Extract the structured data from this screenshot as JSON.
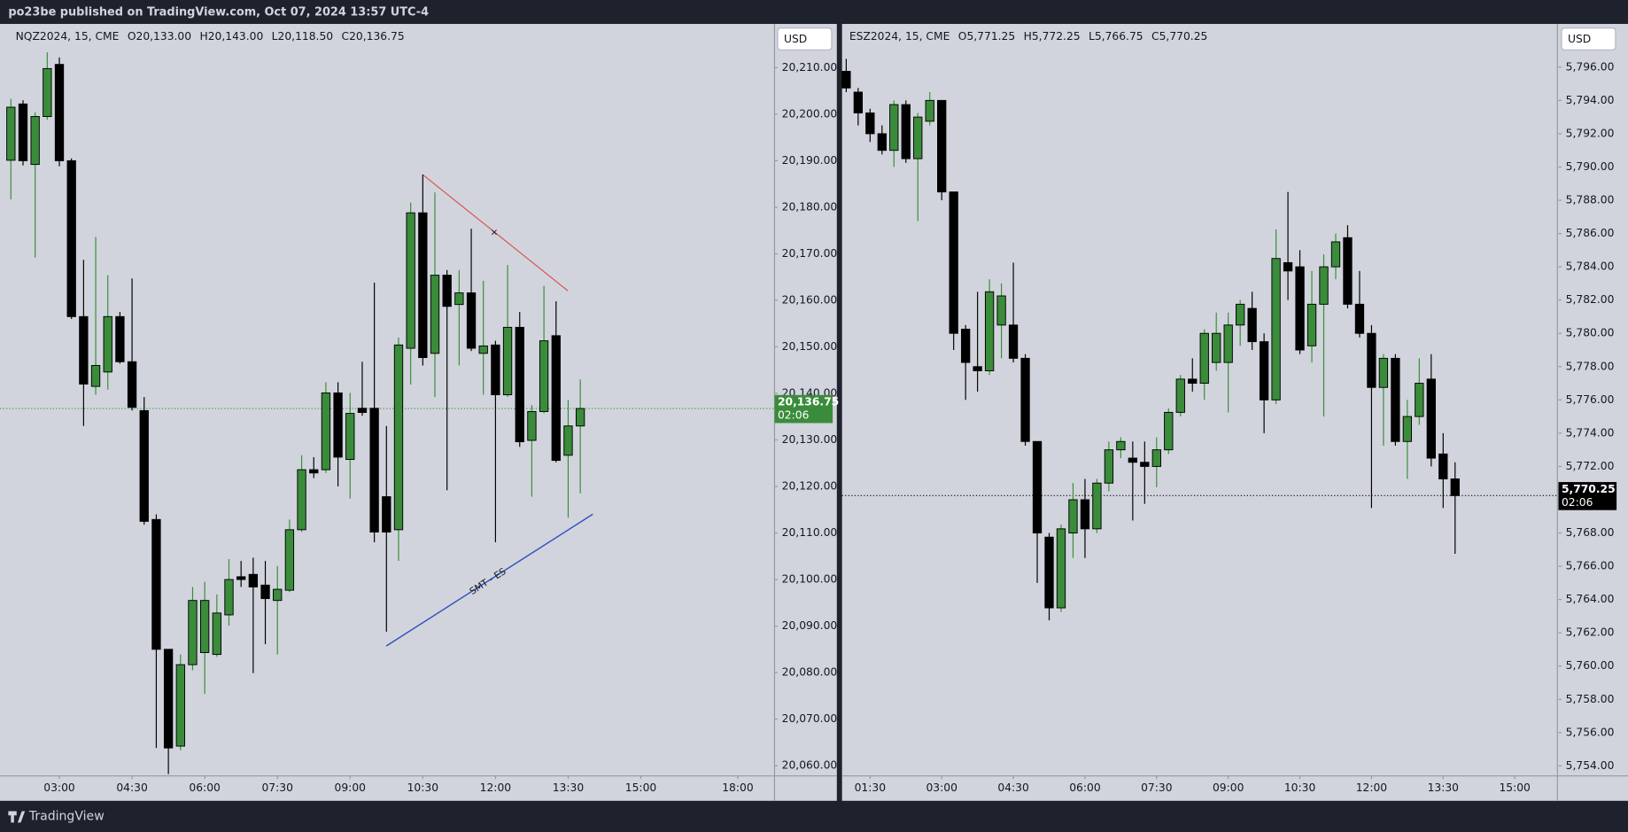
{
  "header": {
    "publisher": "po23be published on TradingView.com, Oct 07, 2024 13:57 UTC-4"
  },
  "footer": {
    "brand": "TradingView"
  },
  "chart_data": [
    {
      "type": "candlestick",
      "symbol": "NQZ2024, 15, CME",
      "ohlc_text": [
        "O20,133.00",
        "H20,143.00",
        "L20,118.50",
        "C20,136.75"
      ],
      "currency": "USD",
      "up_color": "#3a8c3a",
      "down_color": "#000000",
      "open": [
        20190.1,
        20202.2,
        20189.2,
        20199.5,
        20210.7,
        20190,
        20156.5,
        20141.5,
        20144.6,
        20156.5,
        20146.8,
        20136.3,
        20112.9,
        20085,
        20064.2,
        20081.7,
        20084.3,
        20083.9,
        20092.4,
        20100.6,
        20101.1,
        20098.8,
        20095.5,
        20097.7,
        20110.7,
        20123.6,
        20123.6,
        20140.1,
        20125.8,
        20136.8,
        20136.8,
        20117.8,
        20110.7,
        20149.7,
        20178.8,
        20148.6,
        20165.4,
        20159.1,
        20161.6,
        20148.6,
        20150.4,
        20139.7,
        20154.2,
        20129.9,
        20136.1,
        20152.4,
        20126.7,
        20133
      ],
      "high": [
        20203.3,
        20203,
        20200.4,
        20213.3,
        20212.2,
        20190.5,
        20168.7,
        20173.6,
        20165.4,
        20157.5,
        20164.7,
        20139.2,
        20114,
        20085,
        20083.9,
        20098.4,
        20099.5,
        20096.8,
        20104.4,
        20104,
        20104.7,
        20104,
        20102.9,
        20112.9,
        20126.7,
        20126.3,
        20142.4,
        20142.4,
        20140.1,
        20146.8,
        20163.8,
        20133,
        20152,
        20181,
        20187,
        20183.2,
        20166.5,
        20166.5,
        20175.4,
        20164.2,
        20151.3,
        20167.6,
        20157.5,
        20137.5,
        20163.1,
        20159.8,
        20138.6,
        20143
      ],
      "low": [
        20181.7,
        20189,
        20169.2,
        20198.8,
        20188.8,
        20156,
        20133,
        20139.7,
        20140.8,
        20146.4,
        20136.3,
        20111.8,
        20063.8,
        20058.2,
        20063.3,
        20080.5,
        20075.4,
        20083.4,
        20090.1,
        20098.4,
        20079.9,
        20086.1,
        20083.9,
        20097.3,
        20110.2,
        20121.8,
        20122.9,
        20120,
        20117.4,
        20135.2,
        20108,
        20088.8,
        20104,
        20141.9,
        20146,
        20139.2,
        20119.2,
        20146,
        20149.1,
        20139.7,
        20108,
        20139.2,
        20128.5,
        20117.8,
        20135.7,
        20125.2,
        20113.3,
        20118.5
      ],
      "close": [
        20201.5,
        20190,
        20199.5,
        20209.8,
        20190,
        20156.5,
        20142,
        20146,
        20156.5,
        20146.8,
        20137,
        20112.5,
        20085,
        20063.8,
        20081.7,
        20095.5,
        20095.5,
        20092.8,
        20100,
        20100,
        20098.4,
        20095.9,
        20097.9,
        20110.7,
        20123.6,
        20122.9,
        20140.1,
        20126.3,
        20135.7,
        20135.9,
        20110.2,
        20110.2,
        20150.4,
        20178.8,
        20147.7,
        20165.4,
        20158.7,
        20161.6,
        20149.7,
        20150.2,
        20139.7,
        20154.2,
        20129.6,
        20136.1,
        20151.3,
        20125.6,
        20133,
        20136.75
      ],
      "xlim": [
        -0.9,
        62.95
      ],
      "xticks": [
        {
          "value": 4,
          "label": "03:00"
        },
        {
          "value": 10,
          "label": "04:30"
        },
        {
          "value": 16,
          "label": "06:00"
        },
        {
          "value": 22,
          "label": "07:30"
        },
        {
          "value": 28,
          "label": "09:00"
        },
        {
          "value": 34,
          "label": "10:30"
        },
        {
          "value": 40,
          "label": "12:00"
        },
        {
          "value": 46,
          "label": "13:30"
        },
        {
          "value": 52,
          "label": "15:00"
        },
        {
          "value": 60,
          "label": "18:00"
        }
      ],
      "ylim": [
        20057.8,
        20219.4
      ],
      "yticks": [
        {
          "value": 20060,
          "label": "20,060.00"
        },
        {
          "value": 20070,
          "label": "20,070.00"
        },
        {
          "value": 20080,
          "label": "20,080.00"
        },
        {
          "value": 20090,
          "label": "20,090.00"
        },
        {
          "value": 20100,
          "label": "20,100.00"
        },
        {
          "value": 20110,
          "label": "20,110.00"
        },
        {
          "value": 20120,
          "label": "20,120.00"
        },
        {
          "value": 20130,
          "label": "20,130.00"
        },
        {
          "value": 20140,
          "label": "20,140.00"
        },
        {
          "value": 20150,
          "label": "20,150.00"
        },
        {
          "value": 20160,
          "label": "20,160.00"
        },
        {
          "value": 20170,
          "label": "20,170.00"
        },
        {
          "value": 20180,
          "label": "20,180.00"
        },
        {
          "value": 20190,
          "label": "20,190.00"
        },
        {
          "value": 20200,
          "label": "20,200.00"
        },
        {
          "value": 20210,
          "label": "20,210.00"
        }
      ],
      "last_price": {
        "value": 20136.75,
        "label": "20,136.75",
        "countdown": "02:06",
        "color": "#3a8c3a"
      },
      "annotations": [
        "×",
        "SMT - ES"
      ]
    },
    {
      "type": "candlestick",
      "symbol": "ESZ2024, 15, CME",
      "ohlc_text": [
        "O5,771.25",
        "H5,772.25",
        "L5,766.75",
        "C5,770.25"
      ],
      "currency": "USD",
      "up_color": "#3a8c3a",
      "down_color": "#000000",
      "open": [
        5795.75,
        5794.5,
        5793.25,
        5792,
        5791,
        5793.75,
        5790.5,
        5792.75,
        5794,
        5788.5,
        5780.25,
        5778,
        5777.75,
        5780.5,
        5780.5,
        5778.5,
        5773.5,
        5767.75,
        5763.5,
        5768,
        5770,
        5768.25,
        5771,
        5773,
        5772.5,
        5772.25,
        5772,
        5773,
        5775.25,
        5777.25,
        5777,
        5778.25,
        5778.25,
        5780.5,
        5781.5,
        5779.5,
        5776,
        5784.25,
        5784,
        5779.25,
        5781.75,
        5784,
        5785.75,
        5781.75,
        5780,
        5776.75,
        5778.5,
        5773.5,
        5775,
        5777.25,
        5772.75,
        5771.25
      ],
      "high": [
        5796.5,
        5794.75,
        5793.5,
        5792.5,
        5794,
        5794,
        5793.25,
        5794.5,
        5794,
        5788.5,
        5780.5,
        5782.5,
        5783.25,
        5783,
        5784.25,
        5778.75,
        5773.5,
        5768,
        5768.5,
        5771,
        5771.25,
        5771.25,
        5773.5,
        5773.75,
        5773.5,
        5773.5,
        5773.75,
        5775.5,
        5777.5,
        5778.5,
        5780.25,
        5781.25,
        5781.25,
        5782,
        5782.5,
        5780,
        5786.25,
        5788.5,
        5785,
        5783.75,
        5784.75,
        5786,
        5786.5,
        5783.75,
        5780.5,
        5778.75,
        5778.75,
        5776,
        5778.5,
        5778.75,
        5774,
        5772.25
      ],
      "low": [
        5794.5,
        5792.5,
        5791.5,
        5790.75,
        5790,
        5790.25,
        5786.75,
        5792.5,
        5788,
        5779,
        5776,
        5776.5,
        5777.5,
        5778.5,
        5778.25,
        5773.25,
        5765,
        5762.75,
        5763.25,
        5766.5,
        5766.5,
        5768,
        5770.5,
        5772.5,
        5768.75,
        5769.75,
        5770.75,
        5772.75,
        5775,
        5776.5,
        5776,
        5777.75,
        5775.25,
        5779.25,
        5779,
        5774,
        5775.75,
        5782,
        5778.75,
        5778.25,
        5775,
        5783.25,
        5781.5,
        5779.75,
        5769.5,
        5773.25,
        5773.25,
        5771.25,
        5774.5,
        5772,
        5769.5,
        5766.75
      ],
      "close": [
        5794.75,
        5793.25,
        5792,
        5791,
        5793.75,
        5790.5,
        5793,
        5794,
        5788.5,
        5780,
        5778.25,
        5777.75,
        5782.5,
        5782.25,
        5778.5,
        5773.5,
        5768,
        5763.5,
        5768.25,
        5770,
        5768.25,
        5771,
        5773,
        5773.5,
        5772.25,
        5772,
        5773,
        5775.25,
        5777.25,
        5777,
        5780,
        5780,
        5780.5,
        5781.75,
        5779.5,
        5776,
        5784.5,
        5783.75,
        5779,
        5781.75,
        5784,
        5785.5,
        5781.75,
        5780,
        5776.75,
        5778.5,
        5773.5,
        5775,
        5777,
        5772.5,
        5771.25,
        5770.25
      ],
      "xlim": [
        -0.35,
        59.57
      ],
      "xticks": [
        {
          "value": 2,
          "label": "01:30"
        },
        {
          "value": 8,
          "label": "03:00"
        },
        {
          "value": 14,
          "label": "04:30"
        },
        {
          "value": 20,
          "label": "06:00"
        },
        {
          "value": 26,
          "label": "07:30"
        },
        {
          "value": 32,
          "label": "09:00"
        },
        {
          "value": 38,
          "label": "10:30"
        },
        {
          "value": 44,
          "label": "12:00"
        },
        {
          "value": 50,
          "label": "13:30"
        },
        {
          "value": 56,
          "label": "15:00"
        }
      ],
      "ylim": [
        5753.4,
        5798.6
      ],
      "yticks": [
        {
          "value": 5754,
          "label": "5,754.00"
        },
        {
          "value": 5756,
          "label": "5,756.00"
        },
        {
          "value": 5758,
          "label": "5,758.00"
        },
        {
          "value": 5760,
          "label": "5,760.00"
        },
        {
          "value": 5762,
          "label": "5,762.00"
        },
        {
          "value": 5764,
          "label": "5,764.00"
        },
        {
          "value": 5766,
          "label": "5,766.00"
        },
        {
          "value": 5768,
          "label": "5,768.00"
        },
        {
          "value": 5770,
          "label": "5,770.00"
        },
        {
          "value": 5772,
          "label": "5,772.00"
        },
        {
          "value": 5774,
          "label": "5,774.00"
        },
        {
          "value": 5776,
          "label": "5,776.00"
        },
        {
          "value": 5778,
          "label": "5,778.00"
        },
        {
          "value": 5780,
          "label": "5,780.00"
        },
        {
          "value": 5782,
          "label": "5,782.00"
        },
        {
          "value": 5784,
          "label": "5,784.00"
        },
        {
          "value": 5786,
          "label": "5,786.00"
        },
        {
          "value": 5788,
          "label": "5,788.00"
        },
        {
          "value": 5790,
          "label": "5,790.00"
        },
        {
          "value": 5792,
          "label": "5,792.00"
        },
        {
          "value": 5794,
          "label": "5,794.00"
        },
        {
          "value": 5796,
          "label": "5,796.00"
        }
      ],
      "last_price": {
        "value": 5770.25,
        "label": "5,770.25",
        "countdown": "02:06",
        "color": "#000000"
      }
    }
  ]
}
